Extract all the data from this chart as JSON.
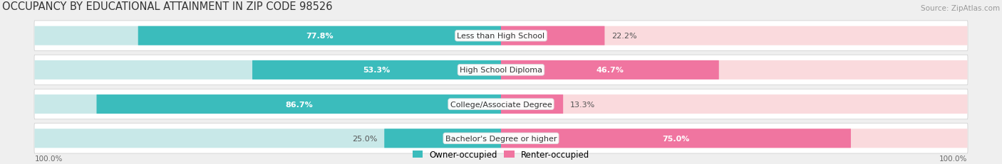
{
  "title": "OCCUPANCY BY EDUCATIONAL ATTAINMENT IN ZIP CODE 98526",
  "source": "Source: ZipAtlas.com",
  "categories": [
    "Less than High School",
    "High School Diploma",
    "College/Associate Degree",
    "Bachelor's Degree or higher"
  ],
  "owner_pct": [
    77.8,
    53.3,
    86.7,
    25.0
  ],
  "renter_pct": [
    22.2,
    46.7,
    13.3,
    75.0
  ],
  "owner_color": "#3bbcbc",
  "renter_color": "#f075a0",
  "owner_light": "#c8e8e8",
  "renter_light": "#fadadd",
  "row_bg": "#ffffff",
  "bg_color": "#efefef",
  "title_fontsize": 10.5,
  "source_fontsize": 7.5,
  "label_fontsize": 8,
  "pct_fontsize": 8,
  "legend_fontsize": 8.5,
  "axis_label_fontsize": 7.5
}
